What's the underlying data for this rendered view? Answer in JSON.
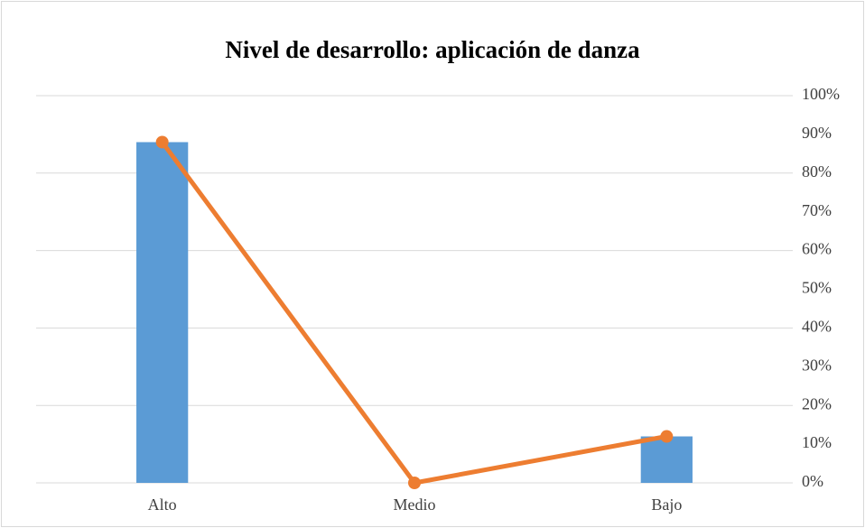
{
  "chart_data": {
    "type": "bar_line",
    "title": "Nivel de desarrollo: aplicación de danza",
    "categories": [
      "Alto",
      "Medio",
      "Bajo"
    ],
    "series": [
      {
        "type": "bar",
        "color": "#5b9bd5",
        "values": [
          88,
          0,
          12
        ]
      },
      {
        "type": "line",
        "color": "#ed7d31",
        "axis": "y2",
        "values": [
          88,
          0,
          12
        ]
      }
    ],
    "ylim": [
      0,
      100
    ],
    "yticks": [
      0,
      20,
      40,
      60,
      80,
      100
    ],
    "grid": true,
    "y2lim": [
      0,
      100
    ],
    "y2ticks": [
      {
        "value": 0,
        "label": "0%"
      },
      {
        "value": 10,
        "label": "10%"
      },
      {
        "value": 20,
        "label": "20%"
      },
      {
        "value": 30,
        "label": "30%"
      },
      {
        "value": 40,
        "label": "40%"
      },
      {
        "value": 50,
        "label": "50%"
      },
      {
        "value": 60,
        "label": "60%"
      },
      {
        "value": 70,
        "label": "70%"
      },
      {
        "value": 80,
        "label": "80%"
      },
      {
        "value": 90,
        "label": "90%"
      },
      {
        "value": 100,
        "label": "100%"
      }
    ]
  }
}
